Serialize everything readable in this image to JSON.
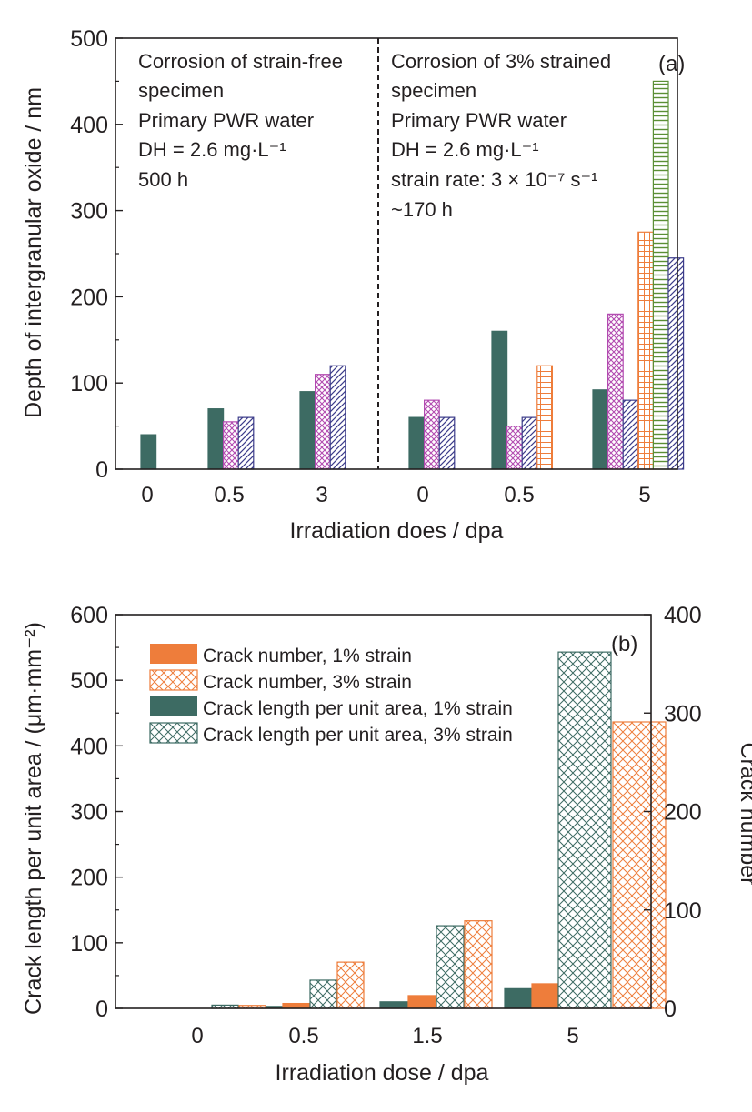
{
  "colors": {
    "teal": "#3d6b63",
    "orange": "#ee7d3b",
    "magenta": "#b24ab0",
    "navy": "#3c3c8a",
    "green": "#5b8f35",
    "axis": "#231f20"
  },
  "chart_data": [
    {
      "type": "bar",
      "panel": "(a)",
      "title": "",
      "xlabel": "Irradiation does / dpa",
      "ylabel": "Depth of intergranular oxide / nm",
      "ylim": [
        0,
        500
      ],
      "yticks": [
        0,
        100,
        200,
        300,
        400,
        500
      ],
      "grid": false,
      "annotations": {
        "left": [
          "Corrosion of strain-free",
          "specimen",
          "Primary PWR water",
          "DH = 2.6 mg·L⁻¹",
          "500 h"
        ],
        "right": [
          "Corrosion of 3% strained",
          "specimen",
          "Primary PWR water",
          "DH = 2.6 mg·L⁻¹",
          "strain rate: 3 × 10⁻⁷ s⁻¹",
          "~170 h"
        ]
      },
      "groups": [
        {
          "label": "0",
          "bars": [
            {
              "style": "solid-teal",
              "value": 40
            }
          ]
        },
        {
          "label": "0.5",
          "bars": [
            {
              "style": "solid-teal",
              "value": 70
            },
            {
              "style": "cross-magenta",
              "value": 55
            },
            {
              "style": "diag-navy",
              "value": 60
            }
          ]
        },
        {
          "label": "3",
          "bars": [
            {
              "style": "solid-teal",
              "value": 90
            },
            {
              "style": "cross-magenta",
              "value": 110
            },
            {
              "style": "diag-navy",
              "value": 120
            }
          ]
        },
        {
          "label": "0",
          "bars": [
            {
              "style": "solid-teal",
              "value": 60
            },
            {
              "style": "cross-magenta",
              "value": 80
            },
            {
              "style": "diag-navy",
              "value": 60
            }
          ]
        },
        {
          "label": "0.5",
          "bars": [
            {
              "style": "solid-teal",
              "value": 160
            },
            {
              "style": "cross-magenta",
              "value": 50
            },
            {
              "style": "diag-navy",
              "value": 60
            },
            {
              "style": "grid-orange",
              "value": 120
            }
          ]
        },
        {
          "label": "5",
          "bars": [
            {
              "style": "solid-teal",
              "value": 92
            },
            {
              "style": "cross-magenta",
              "value": 180
            },
            {
              "style": "diag-navy",
              "value": 80
            },
            {
              "style": "grid-orange",
              "value": 275
            },
            {
              "style": "hlines-green",
              "value": 450
            },
            {
              "style": "diag-navy",
              "value": 245
            }
          ]
        }
      ]
    },
    {
      "type": "bar",
      "panel": "(b)",
      "title": "",
      "xlabel": "Irradiation dose / dpa",
      "ylabel": "Crack length per unit area / (μm·mm⁻²)",
      "y2label": "Crack number",
      "ylim": [
        0,
        600
      ],
      "y2lim": [
        0,
        400
      ],
      "yticks": [
        0,
        100,
        200,
        300,
        400,
        500,
        600
      ],
      "y2ticks": [
        0,
        100,
        200,
        300,
        400
      ],
      "categories": [
        "0",
        "0.5",
        "1.5",
        "5"
      ],
      "legend_position": "top-left",
      "grid": false,
      "series": [
        {
          "name": "Crack length per unit area, 1% strain",
          "axis": "left",
          "style": "solid-teal",
          "values": [
            0,
            3,
            10,
            30
          ]
        },
        {
          "name": "Crack number, 1% strain",
          "axis": "right",
          "style": "solid-orange",
          "values": [
            0,
            5,
            13,
            25
          ]
        },
        {
          "name": "Crack length per unit area, 3% strain",
          "axis": "left",
          "style": "cross-teal",
          "values": [
            5,
            43,
            126,
            543
          ]
        },
        {
          "name": "Crack number, 3% strain",
          "axis": "right",
          "style": "cross-orange",
          "values": [
            3,
            47,
            89,
            291
          ]
        }
      ],
      "legend_order": [
        "Crack number, 1% strain",
        "Crack number, 3% strain",
        "Crack length per unit area, 1% strain",
        "Crack length per unit area, 3% strain"
      ]
    }
  ]
}
